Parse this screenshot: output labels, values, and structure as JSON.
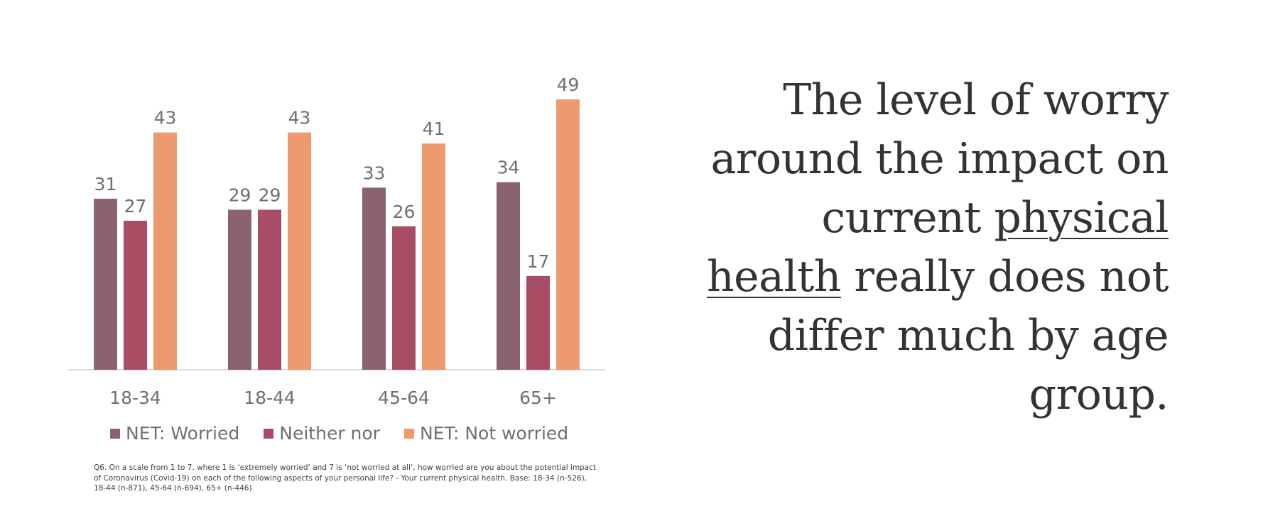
{
  "chart_data": {
    "type": "bar",
    "categories": [
      "18-34",
      "18-44",
      "45-64",
      "65+"
    ],
    "series": [
      {
        "name": "NET: Worried",
        "values": [
          31,
          29,
          33,
          34
        ],
        "color": "#8B6270"
      },
      {
        "name": "Neither nor",
        "values": [
          27,
          29,
          26,
          17
        ],
        "color": "#A94D65"
      },
      {
        "name": "NET: Not worried",
        "values": [
          43,
          43,
          41,
          49
        ],
        "color": "#EC9A6E"
      }
    ],
    "ylim": [
      0,
      49
    ],
    "grid": false,
    "legend_position": "bottom",
    "data_labels": true
  },
  "footnote": "Q6. On a scale from 1 to 7, where 1 is ‘extremely worried’ and 7 is ‘not worried at all’, how worried are you about the potential impact of Coronavirus (Covid-19) on each of the following aspects of your personal life? - Your  current physical health.  Base: 18-34 (n-526), 18-44 (n-871), 45-64 (n-694), 65+ (n-446)",
  "headline": {
    "line1": "The level of worry",
    "line2": "around the impact on",
    "line3_pre": "current ",
    "line3_underlined": "physical",
    "line4_underlined": "health",
    "line4_post": " really does not",
    "line5": "differ much by age",
    "line6": "group."
  }
}
